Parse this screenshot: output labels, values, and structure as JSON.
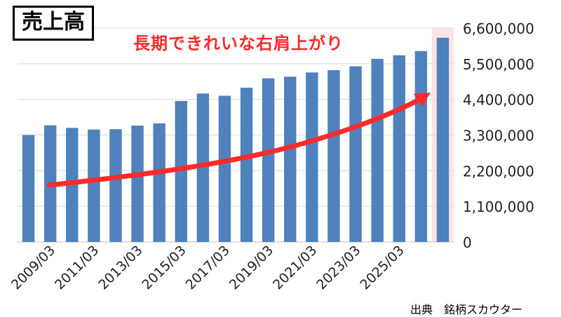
{
  "title": "売上高",
  "annotation": "長期できれいな右肩上がり",
  "source": "出典　銘柄スカウター",
  "colors": {
    "bar": "#4f81bd",
    "arrow": "#ff2a2a",
    "highlight": "#fbe5e4",
    "grid": "#d9d9d9"
  },
  "chart_data": {
    "type": "bar",
    "categories": [
      "2008/03",
      "2009/03",
      "2010/03",
      "2011/03",
      "2012/03",
      "2013/03",
      "2014/03",
      "2015/03",
      "2016/03",
      "2017/03",
      "2018/03",
      "2019/03",
      "2020/03",
      "2021/03",
      "2022/03",
      "2023/03",
      "2024/03",
      "2025/03",
      "2026/03",
      "2027/03"
    ],
    "tick_labels": [
      "2009/03",
      "2011/03",
      "2013/03",
      "2015/03",
      "2017/03",
      "2019/03",
      "2021/03",
      "2023/03",
      "2025/03"
    ],
    "values": [
      3300000,
      3600000,
      3520000,
      3470000,
      3480000,
      3590000,
      3660000,
      4350000,
      4580000,
      4510000,
      4760000,
      5050000,
      5100000,
      5230000,
      5300000,
      5420000,
      5650000,
      5760000,
      5890000,
      6300000
    ],
    "y_axis": {
      "min": 0,
      "max": 6600000,
      "ticks": [
        0,
        1100000,
        2200000,
        3300000,
        4400000,
        5500000,
        6600000
      ],
      "tick_labels": [
        "0",
        "1,100,000",
        "2,200,000",
        "3,300,000",
        "4,400,000",
        "5,500,000",
        "6,600,000"
      ],
      "position": "right"
    },
    "highlight_last_bar": true,
    "grid": true,
    "xlabel": "",
    "ylabel": ""
  }
}
